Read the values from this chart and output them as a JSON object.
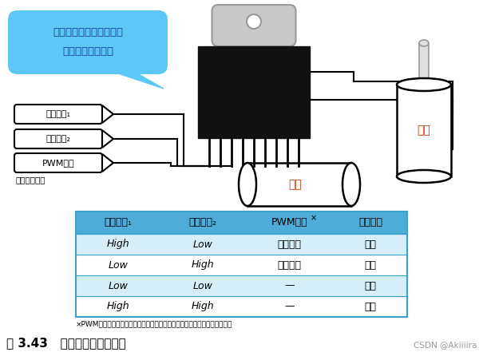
{
  "bg_color": "#ffffff",
  "title": "图 3.43   电机驱动的使用方法",
  "credit": "CSDN @Akiiiira",
  "bubble_text_line1": "该引脚的设置仅供参考，",
  "bubble_text_line2": "实际要以产品为准",
  "bubble_color": "#5bc8f5",
  "left_labels": [
    "输出端子₁",
    "输出端子₂",
    "PWM端子"
  ],
  "micro_label": "微控制器端子",
  "battery_label": "电池",
  "motor_label": "电机",
  "table_headers": [
    "输出端子₁",
    "输出端子₂",
    "PWM端子›×‹",
    "电机旋转"
  ],
  "table_header_note": "×",
  "table_rows": [
    [
      "High",
      "Low",
      "旋转速度",
      "正转"
    ],
    [
      "Low",
      "High",
      "旋转速度",
      "反转"
    ],
    [
      "Low",
      "Low",
      "—",
      "停止"
    ],
    [
      "High",
      "High",
      "—",
      "制动"
    ]
  ],
  "table_header_color": "#4dadd8",
  "table_row_colors": [
    "#d6eef9",
    "#ffffff",
    "#d6eef9",
    "#ffffff"
  ],
  "footnote": "×PWM是把数字信号转换成模拟信号的方法之一（３．３４节有详细解说）。"
}
